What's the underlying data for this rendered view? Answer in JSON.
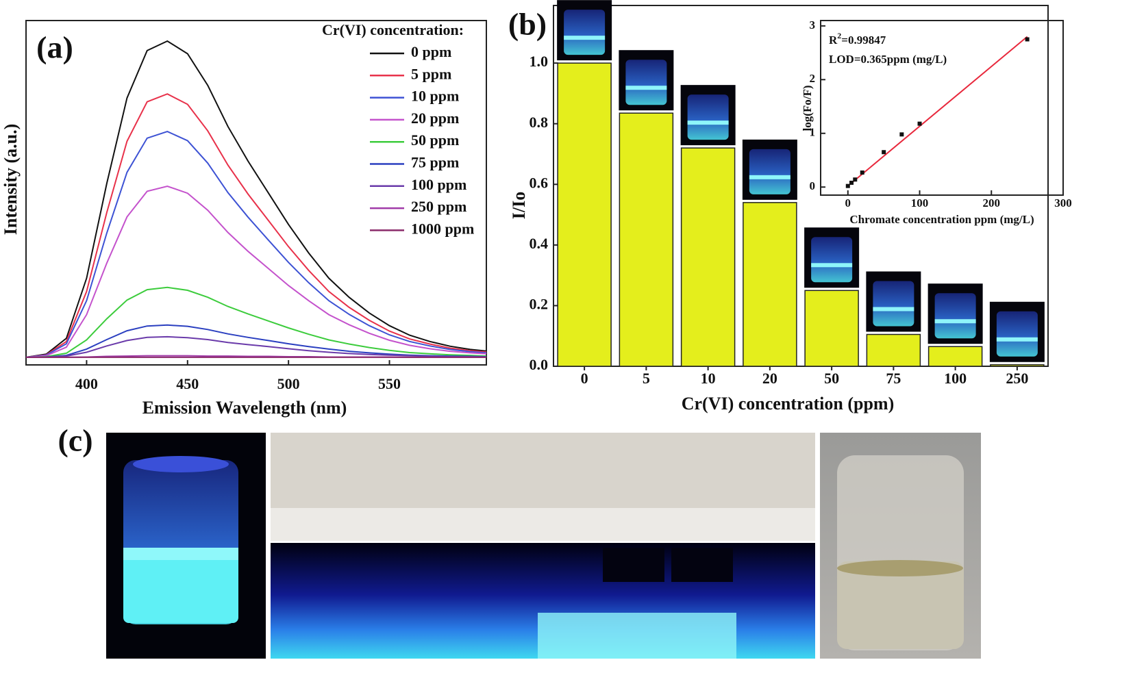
{
  "chart_data": [
    {
      "type": "line",
      "panel_label": "(a)",
      "x_label": "Emission Wavelength (nm)",
      "y_label": "Intensity (a.u.)",
      "legend_title": "Cr(VI) concentration:",
      "legend": true,
      "xlim": [
        370,
        598
      ],
      "ylim": [
        -2.4,
        106.5
      ],
      "xticks": [
        400,
        450,
        500,
        550
      ],
      "x": [
        370,
        380,
        390,
        400,
        410,
        420,
        430,
        440,
        450,
        460,
        470,
        480,
        490,
        500,
        510,
        520,
        530,
        540,
        550,
        560,
        570,
        580,
        590,
        598
      ],
      "series": [
        {
          "name": "0 ppm",
          "color": "#111111",
          "values": [
            0,
            1,
            6,
            25,
            55,
            82,
            97,
            100,
            96,
            86,
            73,
            62,
            52,
            42,
            33,
            25,
            19,
            14,
            10,
            7,
            5,
            3.5,
            2.5,
            2
          ]
        },
        {
          "name": "5 ppm",
          "color": "#e8314a",
          "values": [
            0,
            0.8,
            5,
            20.8,
            45.8,
            68.3,
            80.8,
            83.3,
            80,
            71.6,
            60.8,
            51.6,
            43.3,
            35,
            27.5,
            20.8,
            15.8,
            11.7,
            8.3,
            5.8,
            4.2,
            2.9,
            2.1,
            1.7
          ]
        },
        {
          "name": "10 ppm",
          "color": "#3d52d4",
          "values": [
            0,
            0.7,
            4.3,
            17.9,
            39.3,
            58.5,
            69.3,
            71.4,
            68.5,
            61.4,
            52.1,
            44.3,
            37.1,
            30,
            23.6,
            17.9,
            13.6,
            10,
            7.1,
            5,
            3.6,
            2.5,
            1.8,
            1.4
          ]
        },
        {
          "name": "20 ppm",
          "color": "#c452cc",
          "values": [
            0,
            0.5,
            3.2,
            13.5,
            29.8,
            44.4,
            52.5,
            54.1,
            51.9,
            46.5,
            39.5,
            33.5,
            28.1,
            22.7,
            17.9,
            13.5,
            10.3,
            7.6,
            5.4,
            3.8,
            2.7,
            1.9,
            1.4,
            1.1
          ]
        },
        {
          "name": "50 ppm",
          "color": "#3ccc3c",
          "values": [
            0,
            0.2,
            1.3,
            5.5,
            12.2,
            18.1,
            21.4,
            22.1,
            21.2,
            19,
            16.1,
            13.7,
            11.5,
            9.3,
            7.3,
            5.5,
            4.2,
            3.1,
            2.2,
            1.5,
            1.1,
            0.8,
            0.6,
            0.4
          ]
        },
        {
          "name": "75 ppm",
          "color": "#2a3fc0",
          "values": [
            0,
            0.1,
            0.6,
            2.6,
            5.6,
            8.4,
            9.9,
            10.2,
            9.8,
            8.8,
            7.4,
            6.3,
            5.3,
            4.3,
            3.4,
            2.6,
            1.9,
            1.4,
            1,
            0.7,
            0.5,
            0.4,
            0.3,
            0.2
          ]
        },
        {
          "name": "100 ppm",
          "color": "#6a3aaa",
          "values": [
            0,
            0.1,
            0.4,
            1.6,
            3.6,
            5.3,
            6.3,
            6.5,
            6.2,
            5.6,
            4.7,
            4,
            3.4,
            2.7,
            2.1,
            1.6,
            1.2,
            0.9,
            0.7,
            0.5,
            0.3,
            0.2,
            0.2,
            0.1
          ]
        },
        {
          "name": "250 ppm",
          "color": "#a03aa8",
          "values": [
            0,
            0,
            0,
            0.1,
            0.3,
            0.4,
            0.5,
            0.5,
            0.5,
            0.4,
            0.4,
            0.3,
            0.3,
            0.2,
            0.2,
            0.1,
            0.1,
            0.1,
            0.1,
            0,
            0,
            0,
            0,
            0
          ]
        },
        {
          "name": "1000 ppm",
          "color": "#8a2a6a",
          "values": [
            0,
            0,
            0,
            0,
            0,
            0,
            0,
            0,
            0,
            0,
            0,
            0,
            0,
            0,
            0,
            0,
            0,
            0,
            0,
            0,
            0,
            0,
            0,
            0
          ]
        }
      ]
    },
    {
      "type": "bar",
      "panel_label": "(b)",
      "x_label": "Cr(VI) concentration (ppm)",
      "y_label": "I/Io",
      "color": "#e4ee1c",
      "categories": [
        "0",
        "5",
        "10",
        "20",
        "50",
        "75",
        "100",
        "250"
      ],
      "values": [
        1.0,
        0.835,
        0.72,
        0.54,
        0.25,
        0.105,
        0.065,
        0.005
      ],
      "ylim": [
        0,
        1.19
      ],
      "yticks": [
        {
          "value": 0,
          "label": "0.0"
        },
        0.2,
        0.4,
        0.6,
        0.8,
        {
          "value": 1,
          "label": "1.0"
        }
      ]
    },
    {
      "type": "scatter",
      "x_label": "Chromate concentration ppm (mg/L)",
      "y_label": "log(Fo/F)",
      "r2_text": [
        "R",
        "2",
        "=0.99847"
      ],
      "lod_text": "LOD=0.365ppm (mg/L)",
      "color": "#111111",
      "x": [
        0,
        5,
        10,
        20,
        50,
        75,
        100,
        250
      ],
      "values": [
        0.02,
        0.08,
        0.14,
        0.27,
        0.65,
        0.98,
        1.18,
        2.75
      ],
      "fit": {
        "color": "#e8283c",
        "x": [
          0,
          250
        ],
        "values": [
          0.02,
          2.8
        ]
      },
      "xlim": [
        -38,
        300
      ],
      "ylim": [
        -0.15,
        3.1
      ],
      "xticks": [
        0,
        100,
        200,
        300
      ],
      "yticks": [
        0,
        1,
        2,
        3
      ]
    }
  ],
  "panel_c": {
    "label": "(c)"
  }
}
